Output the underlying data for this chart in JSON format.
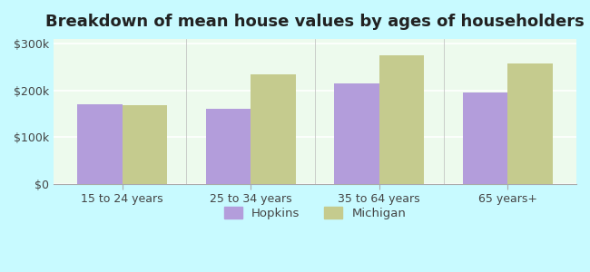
{
  "title": "Breakdown of mean house values by ages of householders",
  "categories": [
    "15 to 24 years",
    "25 to 34 years",
    "35 to 64 years",
    "65 years+"
  ],
  "hopkins_values": [
    170000,
    160000,
    215000,
    195000
  ],
  "michigan_values": [
    168000,
    235000,
    275000,
    258000
  ],
  "hopkins_color": "#b39ddb",
  "michigan_color": "#c5cb8e",
  "background_color": "#c8faff",
  "plot_bg_start": "#e8fde8",
  "plot_bg_end": "#f0fff0",
  "ylim": [
    0,
    310000
  ],
  "yticks": [
    0,
    100000,
    200000,
    300000
  ],
  "ytick_labels": [
    "$0",
    "$100k",
    "$200k",
    "$300k"
  ],
  "bar_width": 0.35,
  "title_fontsize": 13,
  "legend_labels": [
    "Hopkins",
    "Michigan"
  ],
  "figure_size": [
    6.5,
    3.0
  ],
  "dpi": 100
}
